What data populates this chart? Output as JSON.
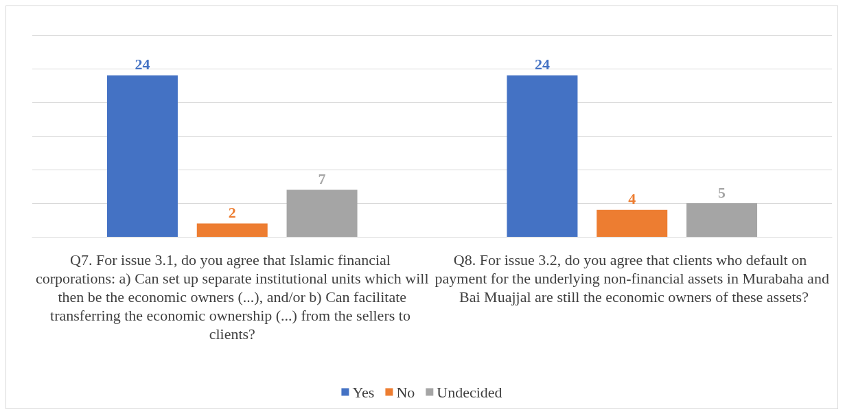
{
  "chart_data": {
    "type": "bar",
    "categories": [
      "Q7. For issue 3.1, do you agree that Islamic financial corporations: a) Can set up separate institutional units which will then be the economic owners (...), and/or b) Can facilitate transferring the economic ownership (...) from the sellers to clients?",
      "Q8. For issue 3.2, do you agree that clients who default on payment for the underlying non-financial assets in Murabaha and Bai Muajjal are still the economic owners of these assets?"
    ],
    "series": [
      {
        "name": "Yes",
        "color": "#4472c4",
        "values": [
          24,
          24
        ]
      },
      {
        "name": "No",
        "color": "#ed7d31",
        "values": [
          2,
          4
        ]
      },
      {
        "name": "Undecided",
        "color": "#a5a5a5",
        "values": [
          7,
          5
        ]
      }
    ],
    "ylim": [
      0,
      30
    ],
    "yticks": [
      {
        "value": 0,
        "label": null
      },
      {
        "value": 5,
        "label": null
      },
      {
        "value": 10,
        "label": null
      },
      {
        "value": 15,
        "label": null
      },
      {
        "value": 20,
        "label": null
      },
      {
        "value": 25,
        "label": null
      },
      {
        "value": 30,
        "label": null
      }
    ],
    "tick_labels": "x",
    "grid": "y",
    "data_labels": true,
    "legend": "bottom"
  }
}
